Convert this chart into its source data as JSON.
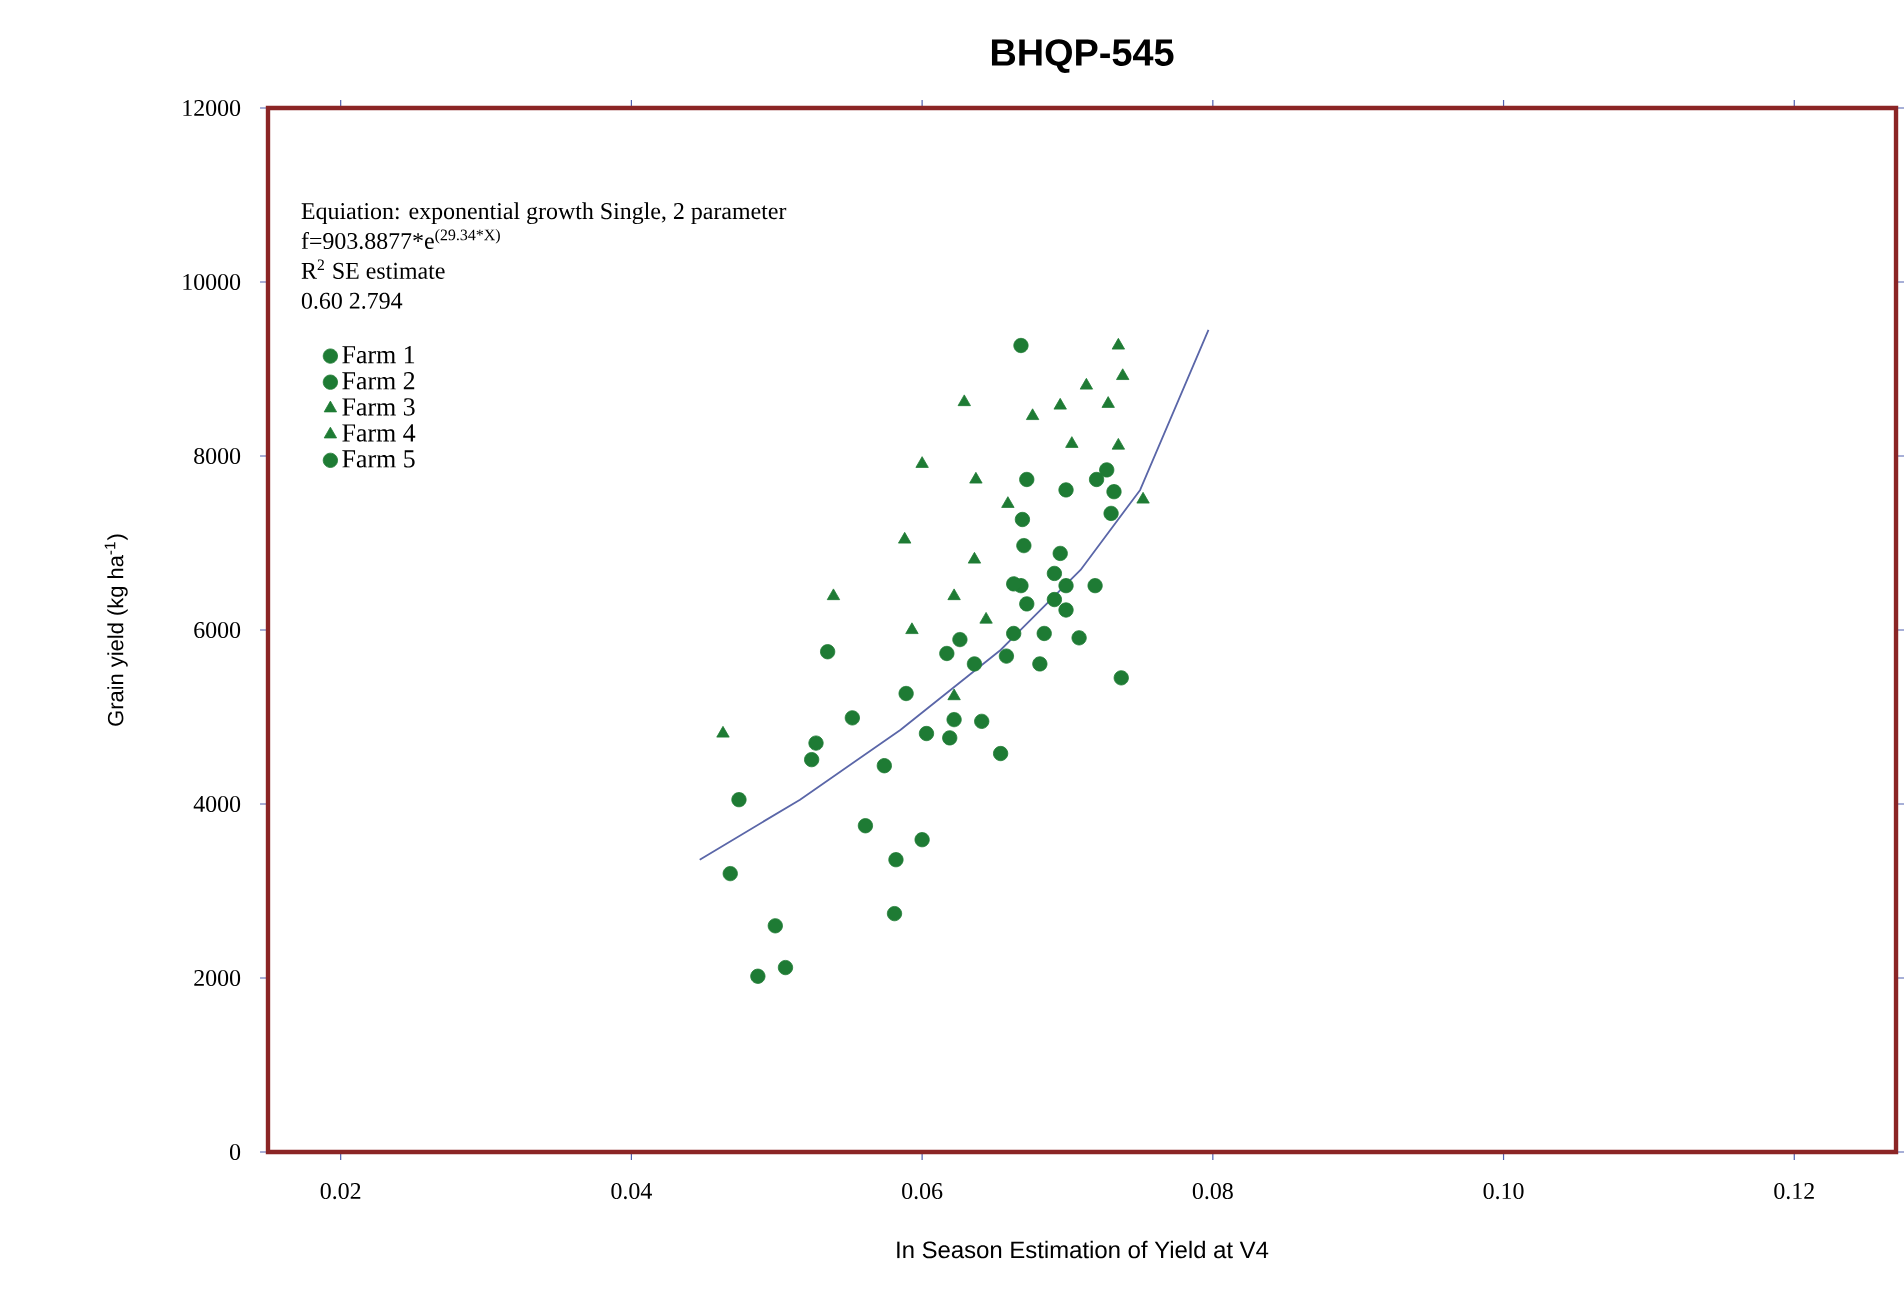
{
  "chart_data": {
    "type": "scatter",
    "title": "BHQP-545",
    "xlabel": "In Season Estimation of Yield at V4",
    "ylabel": "Grain yield (kg ha$^{-1}$)",
    "annotations": [
      "Equiation: exponential growth Single, 2 parameter",
      "f=903.8877*e$^{(29.34*X)}$",
      "R$^{2}$ SE estimate",
      "0.60   2.794"
    ],
    "xlim": [
      0.015,
      0.127
    ],
    "ylim": [
      0,
      12000
    ],
    "xticks": [
      {
        "value": 0.02,
        "label": "0.02"
      },
      {
        "value": 0.04,
        "label": "0.04"
      },
      {
        "value": 0.06,
        "label": "0.06"
      },
      {
        "value": 0.08,
        "label": "0.08"
      },
      {
        "value": 0.1,
        "label": "0.10"
      },
      {
        "value": 0.12,
        "label": "0.12"
      }
    ],
    "yticks": [
      0,
      2000,
      4000,
      6000,
      8000,
      10000,
      12000
    ],
    "grid": false,
    "legend": "top left",
    "series": [
      {
        "name": "Farm 1",
        "color": "#1e7b34",
        "marker": "circle",
        "x": [
          0.0468,
          0.0474,
          0.0499,
          0.0487,
          0.0506,
          0.0581,
          0.06,
          0.0561,
          0.0582,
          0.0654,
          0.0603,
          0.0737,
          0.0668
        ],
        "values": [
          3200,
          4050,
          2600,
          2020,
          2120,
          2740,
          3590,
          3750,
          3360,
          4580,
          4810,
          5450,
          9270
        ]
      },
      {
        "name": "Farm 2",
        "color": "#1e7b34",
        "marker": "circle",
        "x": [
          0.0535,
          0.0622,
          0.0641,
          0.0708,
          0.0681
        ],
        "values": [
          5750,
          4970,
          4950,
          5910,
          5610
        ]
      },
      {
        "name": "Farm 3",
        "color": "#1e7b34",
        "marker": "triangle",
        "x": [
          0.0463,
          0.0539,
          0.06,
          0.0593,
          0.0659,
          0.0752,
          0.0713,
          0.0728,
          0.0622,
          0.0644
        ],
        "values": [
          4810,
          6390,
          7910,
          6000,
          7450,
          7500,
          8810,
          8600,
          6390,
          6120
        ]
      },
      {
        "name": "Farm 4",
        "color": "#1e7b34",
        "marker": "triangle",
        "x": [
          0.0735,
          0.0738,
          0.0629,
          0.0676,
          0.0703,
          0.0735,
          0.0637,
          0.0588,
          0.0636,
          0.0622,
          0.0695
        ],
        "values": [
          9270,
          8920,
          8620,
          8460,
          8140,
          8120,
          7730,
          7040,
          6810,
          5240,
          8580
        ]
      },
      {
        "name": "Farm 5",
        "color": "#1e7b34",
        "marker": "circle",
        "x": [
          0.0552,
          0.0527,
          0.0524,
          0.0574,
          0.0589,
          0.0619,
          0.0617,
          0.0636,
          0.0626,
          0.0658,
          0.0663,
          0.0668,
          0.0691,
          0.0695,
          0.067,
          0.0669,
          0.0672,
          0.0699,
          0.072,
          0.0727,
          0.073,
          0.0719,
          0.0684,
          0.0699,
          0.0672,
          0.0663,
          0.0732,
          0.0691,
          0.0699
        ],
        "values": [
          4990,
          4700,
          4510,
          4440,
          5270,
          4760,
          5730,
          5610,
          5890,
          5700,
          5960,
          6510,
          6650,
          6880,
          6970,
          7270,
          7730,
          7610,
          7730,
          7840,
          7340,
          6510,
          5960,
          6230,
          6300,
          6530,
          7590,
          6350,
          6510
        ]
      },
      {
        "type": "line",
        "color": "#5a66a8",
        "marker": "none",
        "line_style": "solid",
        "x": [
          0.0447,
          0.0516,
          0.0585,
          0.0654,
          0.0709,
          0.075,
          0.0797
        ],
        "values": [
          3360,
          4050,
          4850,
          5770,
          6690,
          7610,
          9450
        ]
      }
    ]
  }
}
